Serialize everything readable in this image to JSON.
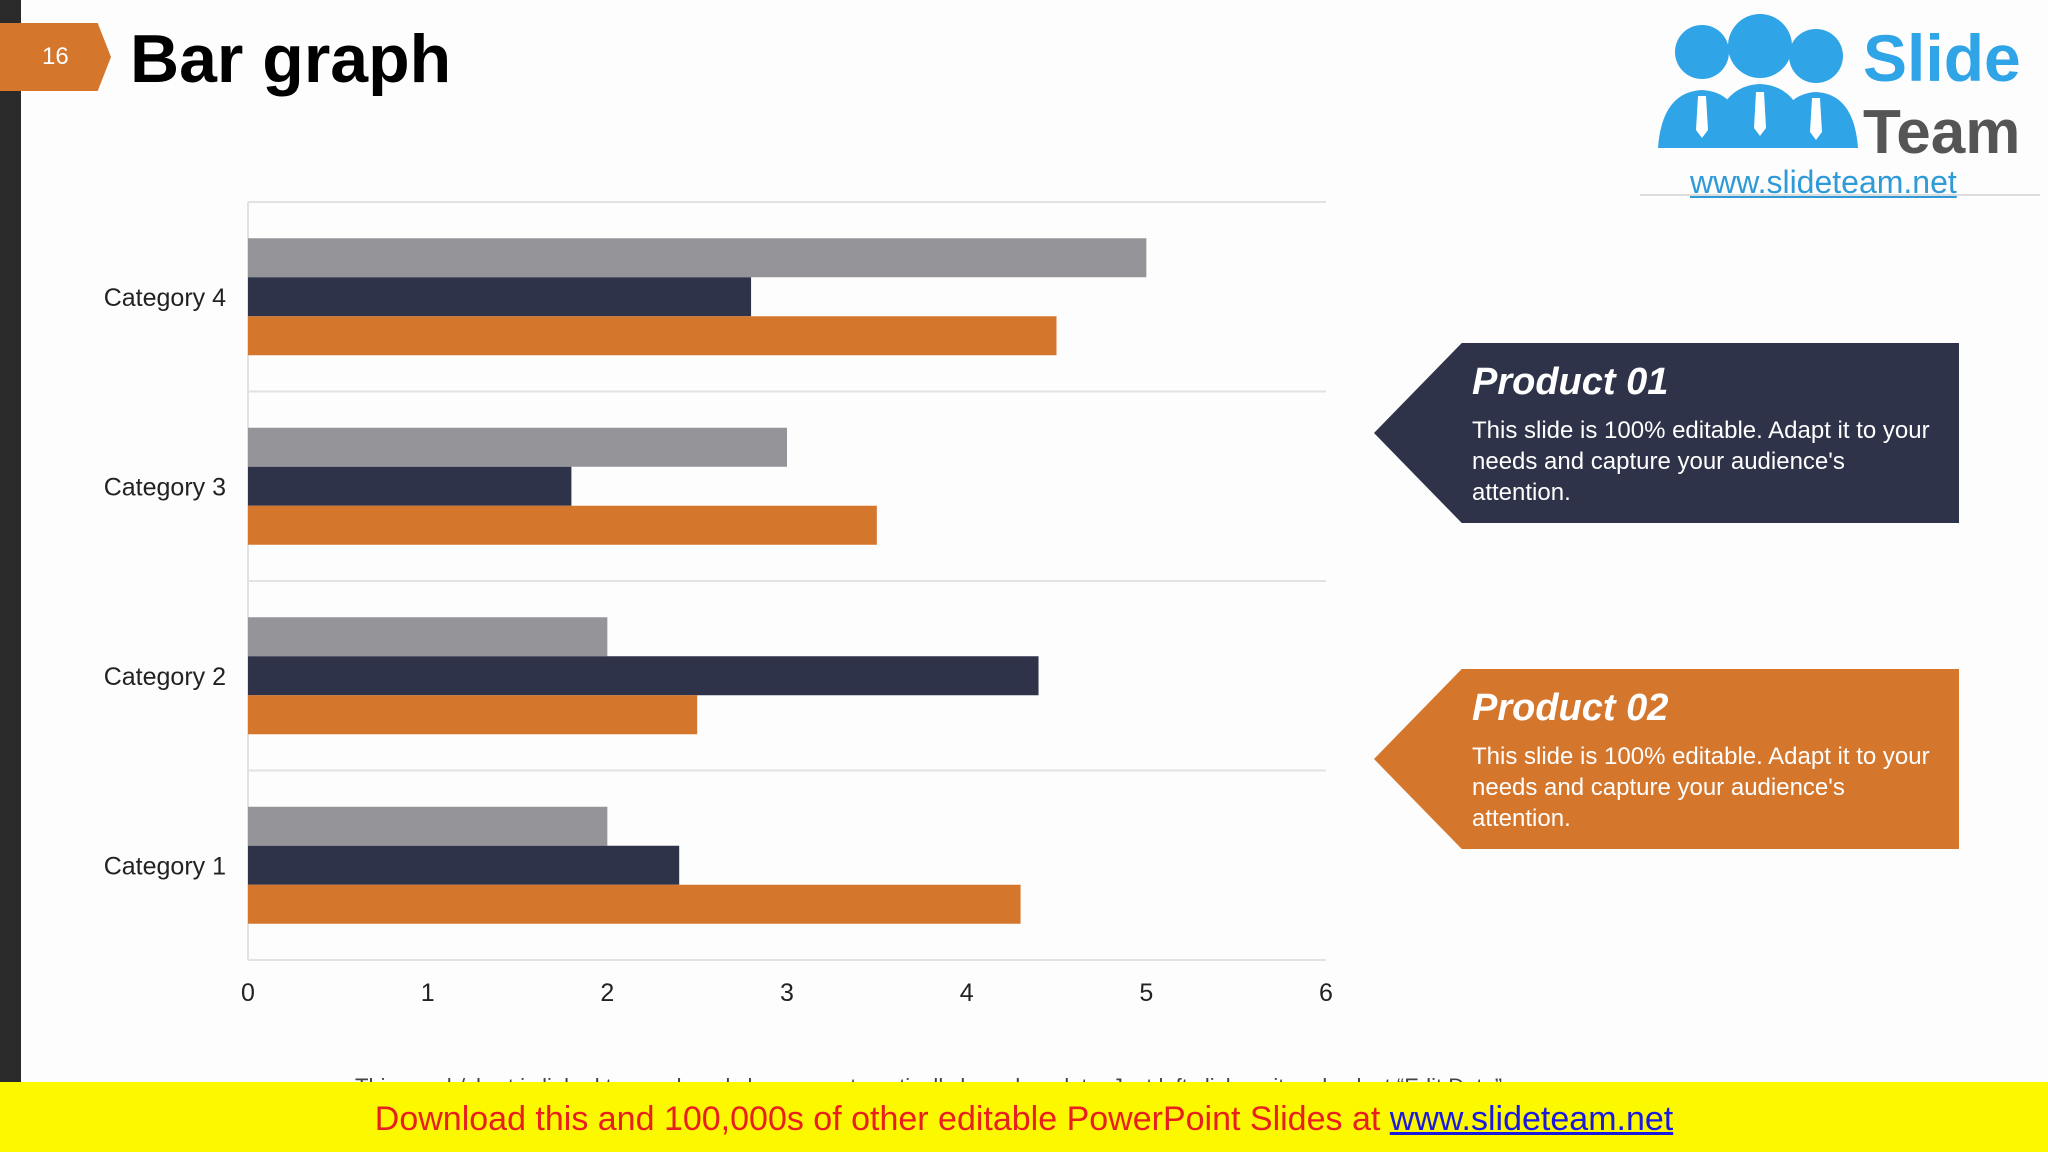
{
  "slide": {
    "number": "16",
    "title": "Bar graph"
  },
  "logo": {
    "brand_line1": "Slide",
    "brand_line2": "Team",
    "url": "www.slideteam.net"
  },
  "callouts": [
    {
      "heading": "Product 01",
      "body": "This slide is 100% editable. Adapt it to your needs and capture your audience's attention.",
      "color": "#2e3349"
    },
    {
      "heading": "Product 02",
      "body": "This slide is 100% editable. Adapt it to your needs and capture your audience's attention.",
      "color": "#d5762d"
    }
  ],
  "note": "This graph/chart is linked to excel, and changes automatically based on data. Just left click on it and select “Edit Data”.",
  "banner": {
    "text": "Download this and 100,000s of other editable PowerPoint Slides at ",
    "link": "www.slideteam.net"
  },
  "chart_data": {
    "type": "bar",
    "orientation": "horizontal",
    "categories": [
      "Category 1",
      "Category 2",
      "Category 3",
      "Category 4"
    ],
    "series": [
      {
        "values": [
          2,
          2,
          3,
          5
        ],
        "color": "#959499"
      },
      {
        "values": [
          2.4,
          4.4,
          1.8,
          2.8
        ],
        "color": "#2e3349"
      },
      {
        "values": [
          4.3,
          2.5,
          3.5,
          4.5
        ],
        "color": "#d5762d"
      }
    ],
    "xlim": [
      0,
      6
    ],
    "xticks": [
      "0",
      "1",
      "2",
      "3",
      "4",
      "5",
      "6"
    ],
    "grid": "horizontal separators between categories",
    "legend": "none"
  }
}
